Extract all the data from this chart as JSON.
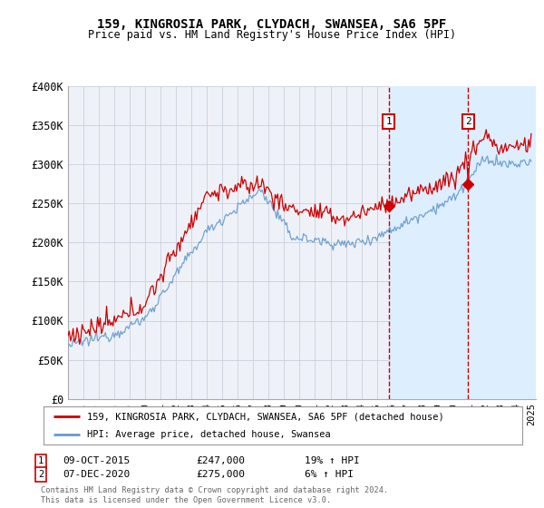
{
  "title": "159, KINGROSIA PARK, CLYDACH, SWANSEA, SA6 5PF",
  "subtitle": "Price paid vs. HM Land Registry's House Price Index (HPI)",
  "legend_line1": "159, KINGROSIA PARK, CLYDACH, SWANSEA, SA6 5PF (detached house)",
  "legend_line2": "HPI: Average price, detached house, Swansea",
  "sale1_date": "09-OCT-2015",
  "sale1_price": 247000,
  "sale1_pct": "19% ↑ HPI",
  "sale2_date": "07-DEC-2020",
  "sale2_price": 275000,
  "sale2_pct": "6% ↑ HPI",
  "footnote": "Contains HM Land Registry data © Crown copyright and database right 2024.\nThis data is licensed under the Open Government Licence v3.0.",
  "ylim": [
    0,
    400000
  ],
  "yticks": [
    0,
    50000,
    100000,
    150000,
    200000,
    250000,
    300000,
    350000,
    400000
  ],
  "ytick_labels": [
    "£0",
    "£50K",
    "£100K",
    "£150K",
    "£200K",
    "£250K",
    "£300K",
    "£350K",
    "£400K"
  ],
  "red_color": "#cc0000",
  "blue_color": "#6699cc",
  "shade_color": "#ddeeff",
  "plot_bg": "#eef2f8",
  "sale1_year": 2015.77,
  "sale2_year": 2020.92,
  "xmin": 1995,
  "xmax": 2025.3
}
